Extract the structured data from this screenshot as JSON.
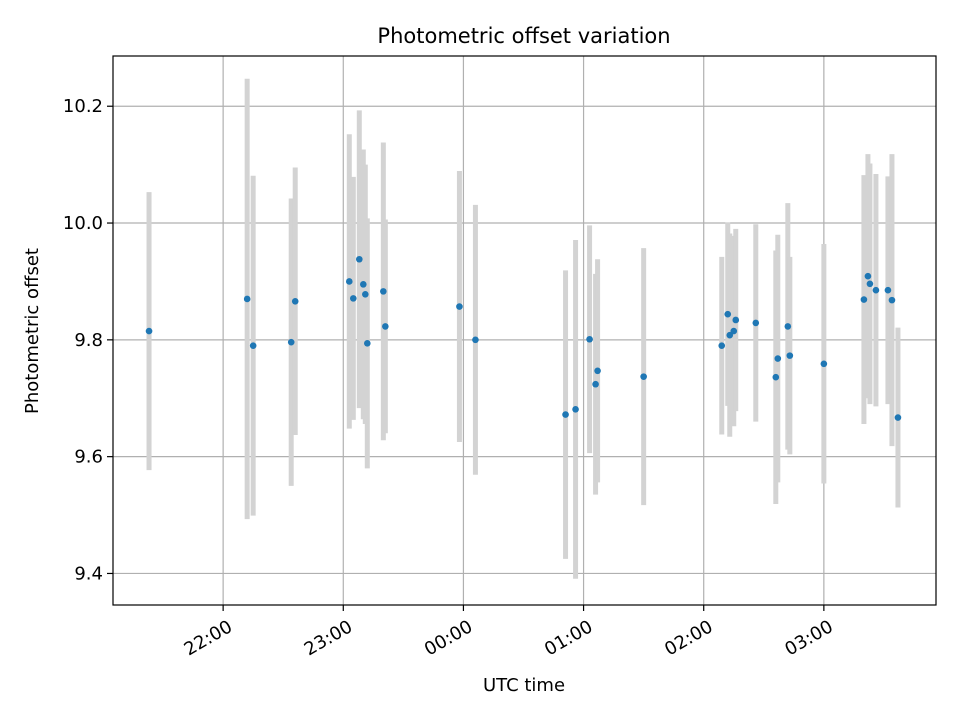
{
  "chart_data": {
    "type": "scatter",
    "title": "Photometric offset variation",
    "xlabel": "UTC time",
    "ylabel": "Photometric offset",
    "x_axis_kind": "time",
    "x_ticks": [
      "22:00",
      "23:00",
      "00:00",
      "01:00",
      "02:00",
      "03:00"
    ],
    "y_ticks": [
      "9.4",
      "9.6",
      "9.8",
      "10.0",
      "10.2"
    ],
    "ylim": [
      9.346,
      10.286
    ],
    "xlim": [
      "21:05",
      "03:56"
    ],
    "grid": true,
    "errorbar_color": "#d3d3d3",
    "point_color": "#1f77b4",
    "points": [
      {
        "t": "21:23",
        "y": 9.815,
        "lo": 9.577,
        "hi": 10.053
      },
      {
        "t": "22:12",
        "y": 9.87,
        "lo": 9.493,
        "hi": 10.247
      },
      {
        "t": "22:15",
        "y": 9.79,
        "lo": 9.499,
        "hi": 10.081
      },
      {
        "t": "22:34",
        "y": 9.796,
        "lo": 9.55,
        "hi": 10.042
      },
      {
        "t": "22:36",
        "y": 9.866,
        "lo": 9.637,
        "hi": 10.095
      },
      {
        "t": "23:03",
        "y": 9.9,
        "lo": 9.648,
        "hi": 10.152
      },
      {
        "t": "23:05",
        "y": 9.871,
        "lo": 9.663,
        "hi": 10.079
      },
      {
        "t": "23:08",
        "y": 9.938,
        "lo": 9.683,
        "hi": 10.193
      },
      {
        "t": "23:10",
        "y": 9.895,
        "lo": 9.664,
        "hi": 10.126
      },
      {
        "t": "23:11",
        "y": 9.878,
        "lo": 9.656,
        "hi": 10.1
      },
      {
        "t": "23:12",
        "y": 9.794,
        "lo": 9.58,
        "hi": 10.008
      },
      {
        "t": "23:20",
        "y": 9.883,
        "lo": 9.628,
        "hi": 10.138
      },
      {
        "t": "23:21",
        "y": 9.823,
        "lo": 9.64,
        "hi": 10.006
      },
      {
        "t": "23:58",
        "y": 9.857,
        "lo": 9.625,
        "hi": 10.089
      },
      {
        "t": "00:06",
        "y": 9.8,
        "lo": 9.569,
        "hi": 10.031
      },
      {
        "t": "00:51",
        "y": 9.672,
        "lo": 9.425,
        "hi": 9.919
      },
      {
        "t": "00:56",
        "y": 9.681,
        "lo": 9.391,
        "hi": 9.971
      },
      {
        "t": "01:03",
        "y": 9.801,
        "lo": 9.606,
        "hi": 9.996
      },
      {
        "t": "01:06",
        "y": 9.724,
        "lo": 9.535,
        "hi": 9.913
      },
      {
        "t": "01:07",
        "y": 9.747,
        "lo": 9.556,
        "hi": 9.938
      },
      {
        "t": "01:30",
        "y": 9.737,
        "lo": 9.517,
        "hi": 9.957
      },
      {
        "t": "02:09",
        "y": 9.79,
        "lo": 9.638,
        "hi": 9.942
      },
      {
        "t": "02:12",
        "y": 9.844,
        "lo": 9.687,
        "hi": 10.001
      },
      {
        "t": "02:13",
        "y": 9.808,
        "lo": 9.634,
        "hi": 9.982
      },
      {
        "t": "02:15",
        "y": 9.815,
        "lo": 9.652,
        "hi": 9.978
      },
      {
        "t": "02:16",
        "y": 9.834,
        "lo": 9.678,
        "hi": 9.99
      },
      {
        "t": "02:26",
        "y": 9.829,
        "lo": 9.66,
        "hi": 9.998
      },
      {
        "t": "02:36",
        "y": 9.736,
        "lo": 9.519,
        "hi": 9.953
      },
      {
        "t": "02:37",
        "y": 9.768,
        "lo": 9.556,
        "hi": 9.98
      },
      {
        "t": "02:42",
        "y": 9.823,
        "lo": 9.612,
        "hi": 10.034
      },
      {
        "t": "02:43",
        "y": 9.773,
        "lo": 9.604,
        "hi": 9.942
      },
      {
        "t": "03:00",
        "y": 9.759,
        "lo": 9.554,
        "hi": 9.964
      },
      {
        "t": "03:20",
        "y": 9.869,
        "lo": 9.656,
        "hi": 10.082
      },
      {
        "t": "03:22",
        "y": 9.909,
        "lo": 9.7,
        "hi": 10.118
      },
      {
        "t": "03:23",
        "y": 9.896,
        "lo": 9.69,
        "hi": 10.102
      },
      {
        "t": "03:26",
        "y": 9.885,
        "lo": 9.686,
        "hi": 10.084
      },
      {
        "t": "03:32",
        "y": 9.885,
        "lo": 9.69,
        "hi": 10.08
      },
      {
        "t": "03:34",
        "y": 9.868,
        "lo": 9.618,
        "hi": 10.118
      },
      {
        "t": "03:37",
        "y": 9.667,
        "lo": 9.513,
        "hi": 9.821
      }
    ]
  }
}
